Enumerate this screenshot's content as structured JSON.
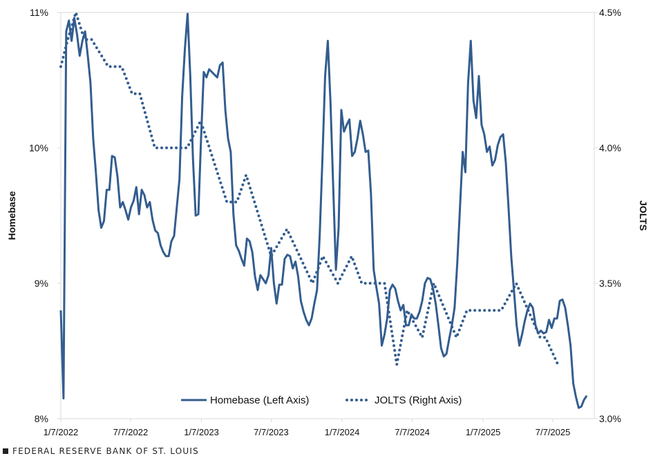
{
  "chart_data": {
    "type": "line",
    "title": "",
    "colors": {
      "line": "#335d8f",
      "axis": "#d9d9d9"
    },
    "x_tick_labels": [
      "1/7/2022",
      "7/7/2022",
      "1/7/2023",
      "7/7/2023",
      "1/7/2024",
      "7/7/2024",
      "1/7/2025",
      "7/7/2025"
    ],
    "x_tick_dates": [
      "2022-01-07",
      "2022-07-07",
      "2023-01-07",
      "2023-07-07",
      "2024-01-07",
      "2024-07-07",
      "2025-01-07",
      "2025-07-07"
    ],
    "left_axis": {
      "label": "Homebase",
      "ylim": [
        8,
        11
      ],
      "tick_labels": [
        "8%",
        "9%",
        "10%",
        "11%"
      ],
      "ticks": [
        8,
        9,
        10,
        11
      ]
    },
    "right_axis": {
      "label": "JOLTS",
      "ylim": [
        3.0,
        4.5
      ],
      "tick_labels": [
        "3.0%",
        "3.5%",
        "4.0%",
        "4.5%"
      ],
      "ticks": [
        3.0,
        3.5,
        4.0,
        4.5
      ]
    },
    "grid": false,
    "legend_position": "bottom-center",
    "series": [
      {
        "name": "Homebase (Left Axis)",
        "axis": "left",
        "style": "solid",
        "start_date": "2022-01-07",
        "frequency": "weekly",
        "values": [
          8.8,
          8.15,
          10.86,
          10.94,
          10.79,
          10.96,
          10.84,
          10.68,
          10.79,
          10.86,
          10.68,
          10.48,
          10.07,
          9.82,
          9.54,
          9.41,
          9.46,
          9.69,
          9.69,
          9.94,
          9.93,
          9.79,
          9.56,
          9.6,
          9.54,
          9.47,
          9.56,
          9.61,
          9.71,
          9.51,
          9.69,
          9.65,
          9.56,
          9.6,
          9.47,
          9.39,
          9.37,
          9.28,
          9.23,
          9.2,
          9.2,
          9.31,
          9.35,
          9.56,
          9.77,
          10.38,
          10.73,
          10.99,
          10.53,
          9.92,
          9.5,
          9.51,
          10.07,
          10.56,
          10.52,
          10.58,
          10.56,
          10.54,
          10.52,
          10.61,
          10.63,
          10.28,
          10.07,
          9.97,
          9.51,
          9.28,
          9.24,
          9.18,
          9.13,
          9.33,
          9.31,
          9.23,
          9.05,
          8.95,
          9.06,
          9.03,
          9.0,
          9.06,
          9.26,
          9.0,
          8.85,
          8.99,
          8.99,
          9.18,
          9.21,
          9.2,
          9.11,
          9.16,
          9.05,
          8.87,
          8.79,
          8.73,
          8.69,
          8.74,
          8.85,
          8.95,
          9.36,
          9.92,
          10.53,
          10.79,
          10.33,
          9.71,
          9.1,
          9.41,
          10.28,
          10.12,
          10.17,
          10.21,
          9.94,
          9.97,
          10.07,
          10.2,
          10.1,
          9.97,
          9.98,
          9.66,
          9.1,
          8.97,
          8.85,
          8.54,
          8.62,
          8.74,
          8.95,
          8.99,
          8.96,
          8.87,
          8.8,
          8.84,
          8.69,
          8.69,
          8.77,
          8.74,
          8.74,
          8.79,
          8.87,
          9.0,
          9.04,
          9.03,
          8.96,
          8.85,
          8.69,
          8.52,
          8.46,
          8.48,
          8.59,
          8.69,
          8.82,
          9.15,
          9.56,
          9.97,
          9.82,
          10.48,
          10.79,
          10.35,
          10.22,
          10.53,
          10.17,
          10.1,
          9.97,
          10.01,
          9.87,
          9.91,
          10.02,
          10.08,
          10.1,
          9.89,
          9.56,
          9.2,
          8.95,
          8.69,
          8.54,
          8.62,
          8.72,
          8.8,
          8.85,
          8.82,
          8.69,
          8.63,
          8.65,
          8.63,
          8.64,
          8.73,
          8.67,
          8.74,
          8.74,
          8.87,
          8.88,
          8.82,
          8.69,
          8.54,
          8.26,
          8.16,
          8.08,
          8.09,
          8.14,
          8.17
        ]
      },
      {
        "name": "JOLTS (Right Axis)",
        "axis": "right",
        "style": "dotted",
        "points": [
          [
            "2022-01-07",
            4.3
          ],
          [
            "2022-01-25",
            4.4
          ],
          [
            "2022-02-15",
            4.5
          ],
          [
            "2022-03-09",
            4.4
          ],
          [
            "2022-03-28",
            4.4
          ],
          [
            "2022-05-10",
            4.3
          ],
          [
            "2022-06-14",
            4.3
          ],
          [
            "2022-07-11",
            4.2
          ],
          [
            "2022-07-31",
            4.2
          ],
          [
            "2022-09-08",
            4.0
          ],
          [
            "2022-12-01",
            4.0
          ],
          [
            "2023-01-05",
            4.1
          ],
          [
            "2023-03-14",
            3.8
          ],
          [
            "2023-04-09",
            3.8
          ],
          [
            "2023-05-03",
            3.9
          ],
          [
            "2023-07-07",
            3.6
          ],
          [
            "2023-08-17",
            3.7
          ],
          [
            "2023-10-22",
            3.5
          ],
          [
            "2023-11-18",
            3.6
          ],
          [
            "2023-12-27",
            3.5
          ],
          [
            "2024-02-01",
            3.6
          ],
          [
            "2024-02-27",
            3.5
          ],
          [
            "2024-04-26",
            3.5
          ],
          [
            "2024-05-28",
            3.2
          ],
          [
            "2024-06-24",
            3.4
          ],
          [
            "2024-08-02",
            3.3
          ],
          [
            "2024-09-01",
            3.5
          ],
          [
            "2024-10-30",
            3.3
          ],
          [
            "2024-11-26",
            3.4
          ],
          [
            "2025-02-23",
            3.4
          ],
          [
            "2025-04-03",
            3.5
          ],
          [
            "2025-06-04",
            3.3
          ],
          [
            "2025-06-18",
            3.3
          ],
          [
            "2025-07-20",
            3.2
          ]
        ]
      }
    ]
  },
  "footer": {
    "text": "FEDERAL RESERVE BANK OF ST. LOUIS"
  }
}
